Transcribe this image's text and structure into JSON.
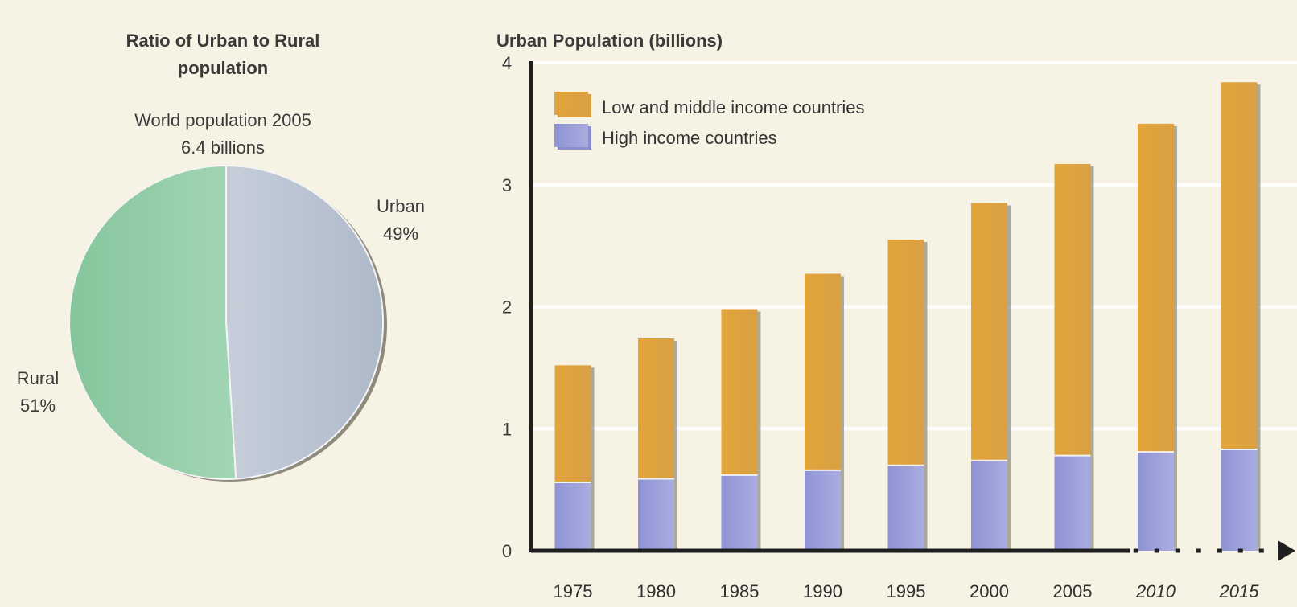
{
  "chart_data": [
    {
      "type": "pie",
      "title": "Ratio of Urban to Rural population",
      "title_lines": [
        "Ratio of Urban to Rural",
        "population"
      ],
      "subtitle_lines": [
        "World population 2005",
        "6.4 billions"
      ],
      "slices": [
        {
          "name": "Urban",
          "value": 49,
          "label_pct": "49%",
          "color": "#b9c3d1"
        },
        {
          "name": "Rural",
          "value": 51,
          "label_pct": "51%",
          "color": "#97cfab"
        }
      ]
    },
    {
      "type": "bar",
      "stacked": true,
      "title": "Urban Population (billions)",
      "categories": [
        "1975",
        "1980",
        "1985",
        "1990",
        "1995",
        "2000",
        "2005",
        "2010",
        "2015"
      ],
      "projected_categories": [
        "2010",
        "2015"
      ],
      "series": [
        {
          "name": "High income countries",
          "color": "#9b9fd8",
          "values": [
            0.56,
            0.59,
            0.62,
            0.66,
            0.7,
            0.74,
            0.78,
            0.81,
            0.83
          ]
        },
        {
          "name": "Low and middle income countries",
          "color": "#e6ad3b",
          "values": [
            0.96,
            1.15,
            1.36,
            1.61,
            1.85,
            2.11,
            2.39,
            2.69,
            3.01
          ]
        }
      ],
      "ylim": [
        0,
        4
      ],
      "yticks": [
        "0",
        "1",
        "2",
        "3",
        "4"
      ],
      "legend": [
        "Low and middle income countries",
        "High income countries"
      ],
      "legend_position": "top-left",
      "grid": true
    }
  ]
}
